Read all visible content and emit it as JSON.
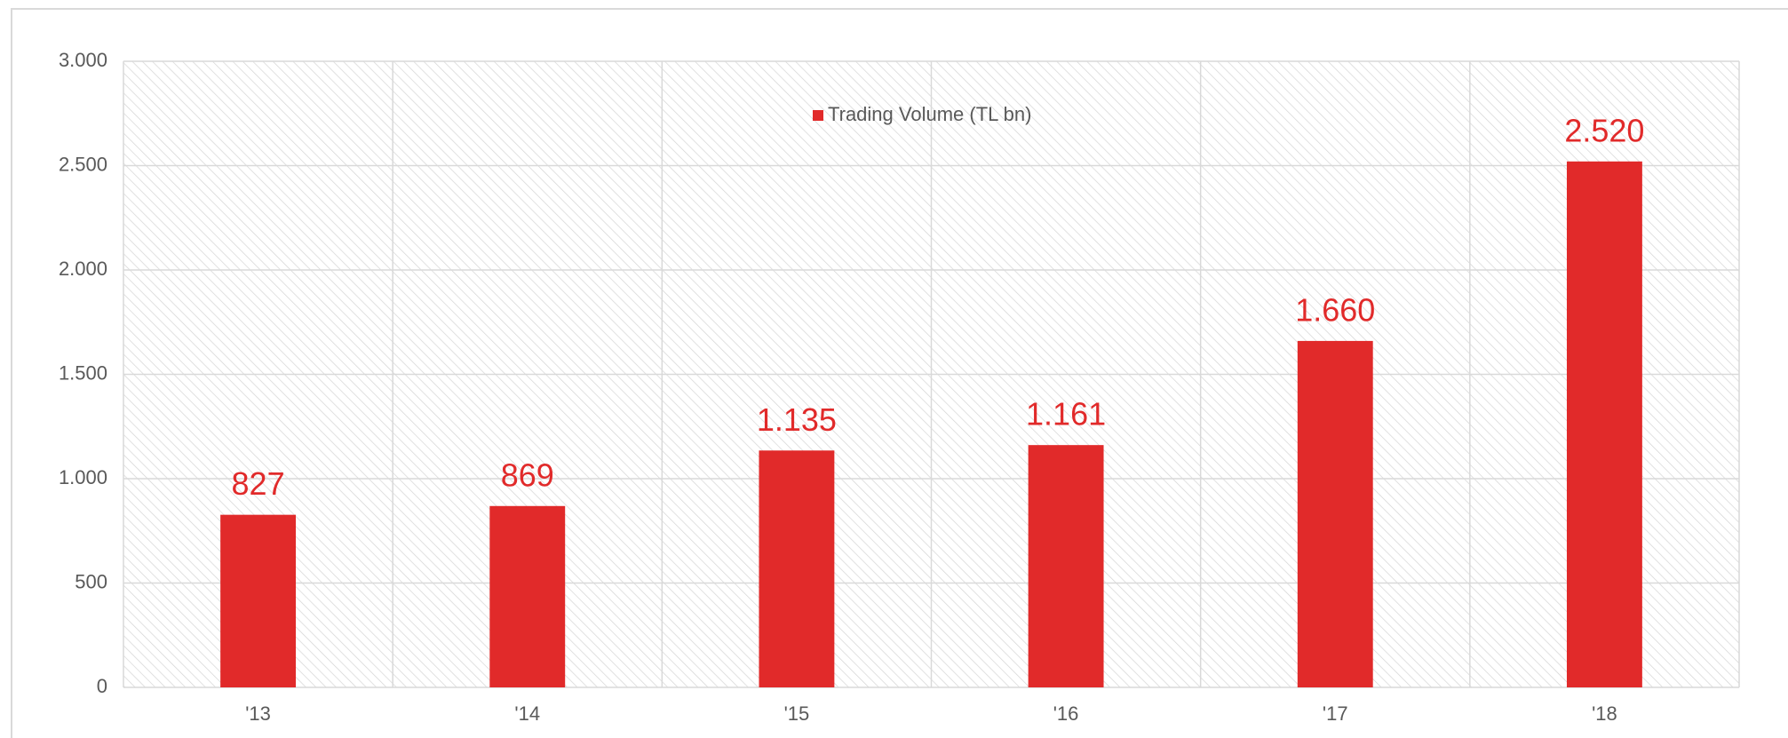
{
  "chart_data": {
    "type": "bar",
    "categories": [
      "'13",
      "'14",
      "'15",
      "'16",
      "'17",
      "'18"
    ],
    "series": [
      {
        "name": "Trading Volume (TL bn)",
        "color": "#e12a2a",
        "values": [
          827,
          869,
          1135,
          1161,
          1660,
          2520
        ],
        "value_labels": [
          "827",
          "869",
          "1.135",
          "1.161",
          "1.660",
          "2.520"
        ]
      }
    ],
    "ylim": [
      0,
      3000
    ],
    "yticks": [
      {
        "value": 0,
        "label": "0"
      },
      {
        "value": 500,
        "label": "500"
      },
      {
        "value": 1000,
        "label": "1.000"
      },
      {
        "value": 1500,
        "label": "1.500"
      },
      {
        "value": 2000,
        "label": "2.000"
      },
      {
        "value": 2500,
        "label": "2.500"
      },
      {
        "value": 3000,
        "label": "3.000"
      }
    ],
    "grid": true,
    "legend": "top"
  }
}
